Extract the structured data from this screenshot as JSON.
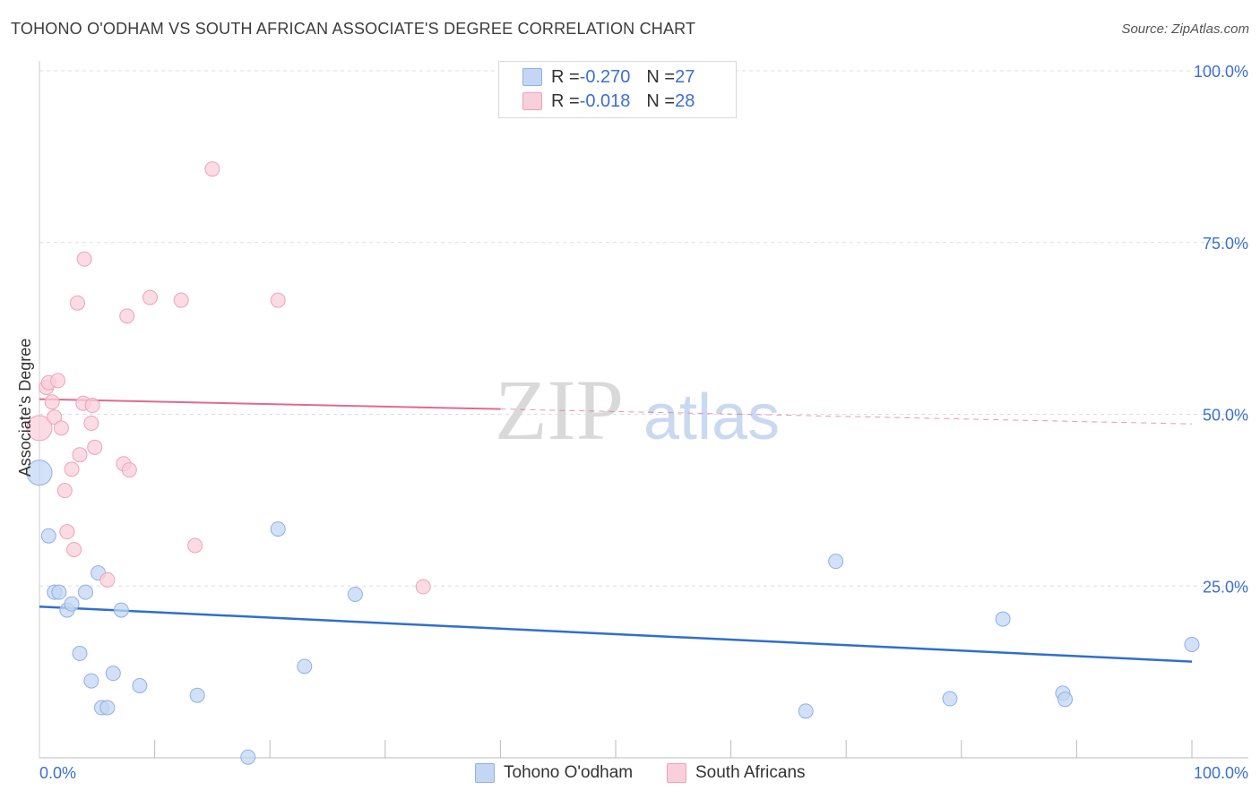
{
  "title": "TOHONO O'ODHAM VS SOUTH AFRICAN ASSOCIATE'S DEGREE CORRELATION CHART",
  "source": "Source: ZipAtlas.com",
  "watermark": {
    "part1": "ZIP",
    "part2": "atlas"
  },
  "legend_top": {
    "rows": [
      {
        "r_label": "R = ",
        "r_value": "-0.270",
        "n_label": "N = ",
        "n_value": "27"
      },
      {
        "r_label": "R = ",
        "r_value": "-0.018",
        "n_label": "N = ",
        "n_value": "28"
      }
    ]
  },
  "legend_bottom": [
    "Tohono O'odham",
    "South Africans"
  ],
  "colors": {
    "blue_fill": "#c3d7f4",
    "blue_stroke": "#8fb1e3",
    "blue_line": "#2f6fce",
    "pink_fill": "#f9cfdb",
    "pink_stroke": "#eea3b9",
    "pink_line": "#e06a8f",
    "tick_label": "#3a6fd0",
    "grid": "#dddddd"
  },
  "chart_data": {
    "type": "scatter",
    "title": "TOHONO O'ODHAM VS SOUTH AFRICAN ASSOCIATE'S DEGREE CORRELATION CHART",
    "xlabel": "",
    "ylabel": "Associate's Degree",
    "xlim": [
      0,
      100
    ],
    "ylim": [
      0,
      100
    ],
    "x_tick_labels": [
      "0.0%",
      "100.0%"
    ],
    "y_ticks": [
      25,
      50,
      75,
      100
    ],
    "y_tick_labels": [
      "25.0%",
      "50.0%",
      "75.0%",
      "100.0%"
    ],
    "series": [
      {
        "name": "Tohono O'odham",
        "color": "blue",
        "r": -0.27,
        "n": 27,
        "trend": {
          "x1": 0,
          "y1": 22.0,
          "x2": 100,
          "y2": 14.0,
          "dashed_from": null
        },
        "points": [
          [
            0.0,
            41.5
          ],
          [
            0.8,
            32.3
          ],
          [
            1.3,
            24.1
          ],
          [
            1.7,
            24.1
          ],
          [
            2.4,
            21.5
          ],
          [
            2.8,
            22.4
          ],
          [
            3.5,
            15.2
          ],
          [
            4.0,
            24.1
          ],
          [
            4.5,
            11.2
          ],
          [
            5.1,
            26.9
          ],
          [
            5.4,
            7.3
          ],
          [
            5.9,
            7.3
          ],
          [
            6.4,
            12.3
          ],
          [
            7.1,
            21.5
          ],
          [
            8.7,
            10.5
          ],
          [
            13.7,
            9.1
          ],
          [
            18.1,
            0.1
          ],
          [
            20.7,
            33.3
          ],
          [
            23.0,
            13.3
          ],
          [
            27.4,
            23.8
          ],
          [
            66.5,
            6.8
          ],
          [
            69.1,
            28.6
          ],
          [
            79.0,
            8.6
          ],
          [
            83.6,
            20.2
          ],
          [
            88.8,
            9.4
          ],
          [
            89.0,
            8.5
          ],
          [
            100.0,
            16.5
          ]
        ]
      },
      {
        "name": "South Africans",
        "color": "pink",
        "r": -0.018,
        "n": 28,
        "trend": {
          "x1": 0,
          "y1": 52.2,
          "x2": 100,
          "y2": 48.6,
          "dashed_from": 40
        },
        "points": [
          [
            0.0,
            48.0
          ],
          [
            0.6,
            53.9
          ],
          [
            0.8,
            54.6
          ],
          [
            1.1,
            51.8
          ],
          [
            1.3,
            49.6
          ],
          [
            1.6,
            54.9
          ],
          [
            1.9,
            48.0
          ],
          [
            2.2,
            38.9
          ],
          [
            2.4,
            32.9
          ],
          [
            2.8,
            42.0
          ],
          [
            3.0,
            30.3
          ],
          [
            3.3,
            66.2
          ],
          [
            3.5,
            44.1
          ],
          [
            3.8,
            51.6
          ],
          [
            3.9,
            72.6
          ],
          [
            4.5,
            48.7
          ],
          [
            4.6,
            51.3
          ],
          [
            4.8,
            45.2
          ],
          [
            5.9,
            25.9
          ],
          [
            7.3,
            42.8
          ],
          [
            7.6,
            64.3
          ],
          [
            7.8,
            41.9
          ],
          [
            9.6,
            67.0
          ],
          [
            12.3,
            66.6
          ],
          [
            13.5,
            30.9
          ],
          [
            15.0,
            85.7
          ],
          [
            20.7,
            66.6
          ],
          [
            33.3,
            24.9
          ]
        ]
      }
    ]
  }
}
